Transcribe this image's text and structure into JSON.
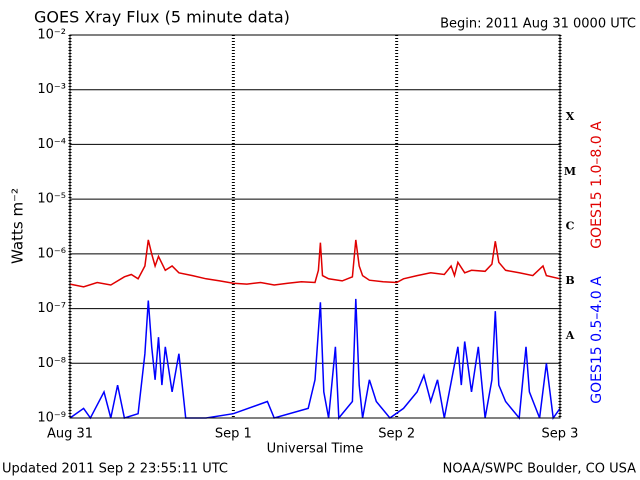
{
  "chart_data": {
    "type": "line",
    "title": "GOES Xray Flux (5 minute data)",
    "subtitle": "Begin:  2011 Aug 31 0000 UTC",
    "x_label": "Universal Time",
    "y_label": "Watts m⁻²",
    "footer_left": "Updated 2011 Sep  2 23:55:11 UTC",
    "footer_right": "NOAA/SWPC Boulder, CO USA",
    "log_y": true,
    "grid": true,
    "xlim": [
      0,
      72
    ],
    "xticks": [
      {
        "value": 0,
        "label": "Aug 31"
      },
      {
        "value": 24,
        "label": "Sep 1"
      },
      {
        "value": 48,
        "label": "Sep 2"
      },
      {
        "value": 72,
        "label": "Sep 3"
      }
    ],
    "ylim": [
      1e-09,
      0.01
    ],
    "yticks": [
      {
        "value": 1e-09,
        "label": "10⁻⁹"
      },
      {
        "value": 1e-08,
        "label": "10⁻⁸"
      },
      {
        "value": 1e-07,
        "label": "10⁻⁷"
      },
      {
        "value": 1e-06,
        "label": "10⁻⁶"
      },
      {
        "value": 1e-05,
        "label": "10⁻⁵"
      },
      {
        "value": 0.0001,
        "label": "10⁻⁴"
      },
      {
        "value": 0.001,
        "label": "10⁻³"
      },
      {
        "value": 0.01,
        "label": "10⁻²"
      }
    ],
    "flare_classes": [
      "X",
      "M",
      "C",
      "B",
      "A"
    ],
    "series": [
      {
        "name": "GOES15 1.0–8.0 A",
        "color": "#e00000",
        "x": [
          0,
          2,
          4,
          6,
          8,
          9,
          10,
          11,
          11.5,
          12,
          12.5,
          13,
          14,
          15,
          16,
          18,
          20,
          22,
          24,
          26,
          28,
          30,
          32,
          34,
          36,
          36.5,
          36.8,
          37.1,
          38,
          40,
          41.5,
          42,
          42.5,
          43,
          44,
          46,
          48,
          49,
          51,
          53,
          55,
          56,
          56.5,
          57,
          58,
          59,
          61,
          62,
          62.5,
          63,
          64,
          66,
          68,
          69.5,
          70,
          72
        ],
        "values": [
          2.8e-07,
          2.5e-07,
          3e-07,
          2.7e-07,
          3.8e-07,
          4.2e-07,
          3.5e-07,
          6e-07,
          1.8e-06,
          1e-06,
          6e-07,
          9e-07,
          5e-07,
          6e-07,
          4.5e-07,
          4e-07,
          3.5e-07,
          3.2e-07,
          2.9e-07,
          2.8e-07,
          3e-07,
          2.7e-07,
          2.9e-07,
          3.1e-07,
          3e-07,
          5e-07,
          1.6e-06,
          4e-07,
          3.5e-07,
          3.2e-07,
          3.8e-07,
          1.8e-06,
          6e-07,
          4e-07,
          3.3e-07,
          3.1e-07,
          3e-07,
          3.5e-07,
          4e-07,
          4.5e-07,
          4.2e-07,
          6e-07,
          4e-07,
          7e-07,
          4.5e-07,
          5e-07,
          4.8e-07,
          6.5e-07,
          1.7e-06,
          7e-07,
          5e-07,
          4.5e-07,
          4e-07,
          6e-07,
          4e-07,
          3.5e-07
        ]
      },
      {
        "name": "GOES15 0.5–4.0 A",
        "color": "#0000ff",
        "x": [
          0,
          2,
          3,
          5,
          6,
          7,
          8,
          10,
          11,
          11.5,
          12,
          12.5,
          13,
          13.5,
          14,
          15,
          16,
          17,
          20,
          24,
          29,
          30,
          35,
          36,
          36.8,
          37.3,
          38,
          39,
          39.5,
          41.5,
          42,
          42.5,
          43,
          44,
          45,
          47,
          49,
          51,
          52,
          53,
          54,
          55,
          57,
          57.5,
          58,
          59,
          60,
          61,
          62,
          62.5,
          63,
          64,
          66,
          67,
          67.5,
          69,
          70,
          71,
          72
        ],
        "values": [
          1e-09,
          1.5e-09,
          1e-09,
          3e-09,
          1e-09,
          4e-09,
          1e-09,
          1.2e-09,
          1.5e-08,
          1.4e-07,
          2e-08,
          5e-09,
          3e-08,
          4e-09,
          2e-08,
          3e-09,
          1.5e-08,
          1e-09,
          1e-09,
          1.2e-09,
          2e-09,
          1e-09,
          1.5e-09,
          5e-09,
          1.3e-07,
          3e-09,
          1e-09,
          2e-08,
          1e-09,
          2e-09,
          1.5e-07,
          4e-09,
          1e-09,
          5e-09,
          2e-09,
          1e-09,
          1.5e-09,
          3e-09,
          6e-09,
          2e-09,
          5e-09,
          1e-09,
          2e-08,
          4e-09,
          2.5e-08,
          3e-09,
          2e-08,
          1e-09,
          5e-09,
          9e-08,
          4e-09,
          2e-09,
          1e-09,
          2e-08,
          3e-09,
          1e-09,
          1e-08,
          1e-09,
          1.5e-09
        ]
      }
    ]
  }
}
